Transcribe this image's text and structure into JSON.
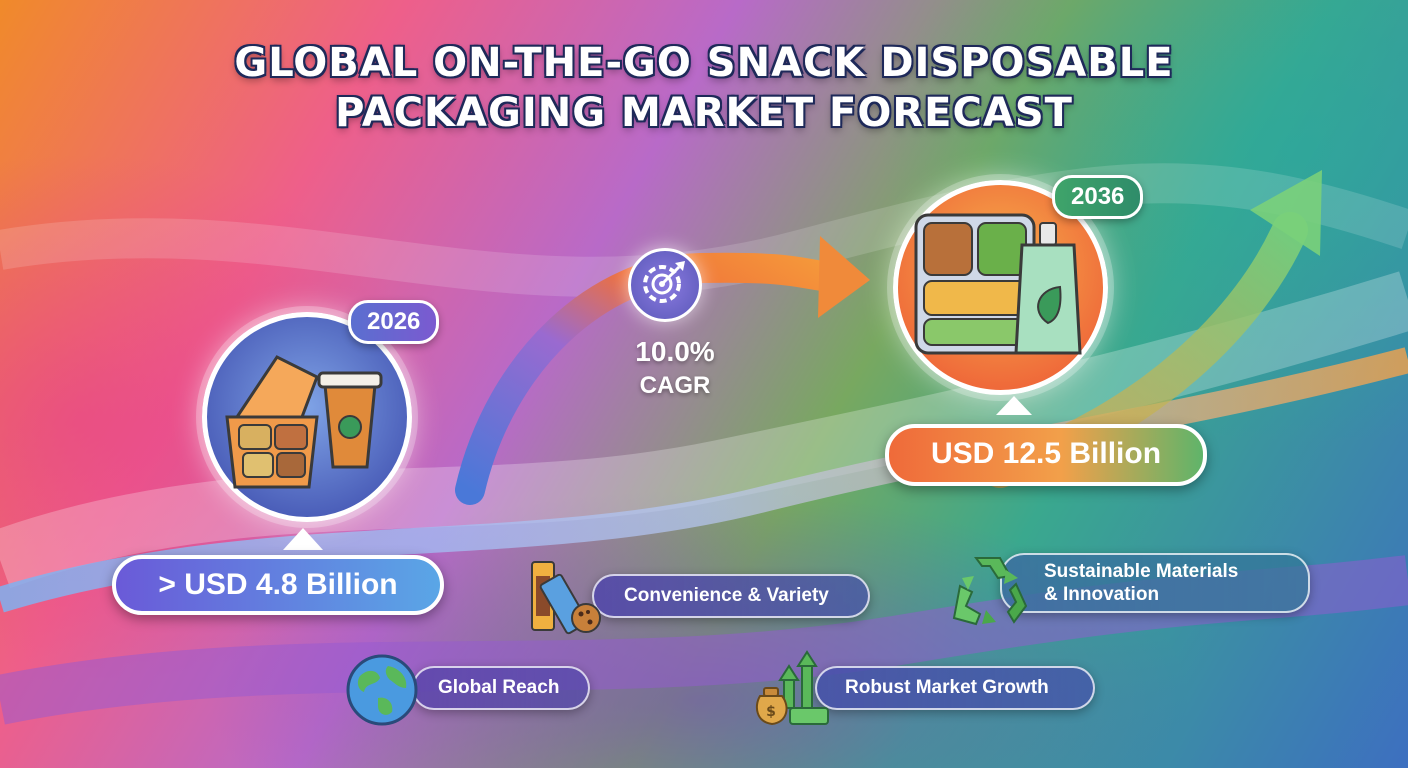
{
  "title": {
    "line1": "GLOBAL ON-THE-GO SNACK DISPOSABLE",
    "line2": "PACKAGING MARKET FORECAST"
  },
  "start": {
    "year": "2026",
    "value": "> USD 4.8 Billion",
    "icon": "takeout-box-and-coffee-cup-icon"
  },
  "end": {
    "year": "2036",
    "value": "USD 12.5 Billion",
    "icon": "snack-tray-and-pouch-icon"
  },
  "growth": {
    "value": "10.0%",
    "label": "CAGR",
    "icon": "target-gear-icon"
  },
  "features": [
    {
      "label": "Convenience & Variety",
      "icon": "snack-bar-and-cookie-icon"
    },
    {
      "label_line1": "Sustainable Materials",
      "label_line2": "& Innovation",
      "icon": "recycle-icon"
    },
    {
      "label": "Global Reach",
      "icon": "globe-icon"
    },
    {
      "label": "Robust Market Growth",
      "icon": "money-bag-growth-icon"
    }
  ],
  "colors": {
    "orange": "#ef6a3a",
    "green": "#3fa46a",
    "blue": "#5a6fd0",
    "white": "#ffffff"
  }
}
